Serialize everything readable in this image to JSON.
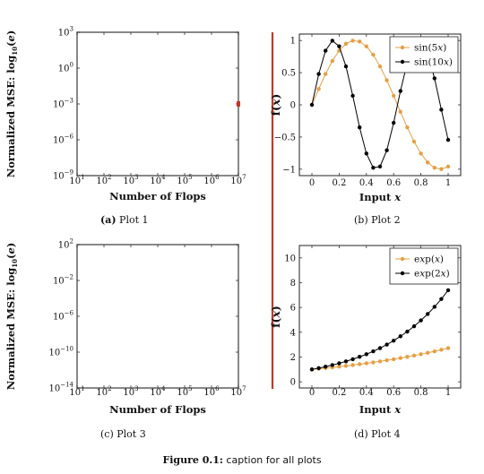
{
  "figure_caption": {
    "label": "Figure 0.1:",
    "text": "caption for all plots"
  },
  "subcaptions": [
    {
      "label": "(a)",
      "text": "Plot 1"
    },
    {
      "label": "(b)",
      "text": "Plot 2"
    },
    {
      "label": "(c)",
      "text": "Plot 3"
    },
    {
      "label": "(d)",
      "text": "Plot 4"
    }
  ],
  "chart_data": [
    {
      "type": "line",
      "scale": "log-log",
      "xlabel": "Number of Flops",
      "ylabel": "Normalized MSE: log10(e)",
      "x_ticks": [
        "10^1",
        "10^2",
        "10^3",
        "10^4",
        "10^5",
        "10^6",
        "10^7"
      ],
      "y_ticks": [
        "10^-9",
        "10^-6",
        "10^-3",
        "10^0",
        "10^3"
      ],
      "xlim": [
        10,
        10000000
      ],
      "ylim": [
        1e-09,
        1000
      ],
      "grid": false,
      "series": []
    },
    {
      "type": "line",
      "xlabel": "Input x",
      "ylabel": "f(x)",
      "x_ticks": [
        "0",
        "0.2",
        "0.4",
        "0.6",
        "0.8",
        "1"
      ],
      "y_ticks": [
        "−1",
        "−0.5",
        "0",
        "0.5",
        "1"
      ],
      "xlim": [
        0,
        1
      ],
      "ylim": [
        -1.1,
        1.1
      ],
      "legend_position": "top-right",
      "series": [
        {
          "name": "sin(5x)",
          "color": "#e3a046",
          "expr": "sin(5x)",
          "x": [
            0,
            0.05,
            0.1,
            0.15,
            0.2,
            0.25,
            0.3,
            0.35,
            0.4,
            0.45,
            0.5,
            0.55,
            0.6,
            0.65,
            0.7,
            0.75,
            0.8,
            0.85,
            0.9,
            0.95,
            1
          ],
          "y": [
            0,
            0.247,
            0.479,
            0.682,
            0.841,
            0.949,
            0.997,
            0.984,
            0.909,
            0.778,
            0.598,
            0.381,
            0.141,
            -0.108,
            -0.351,
            -0.571,
            -0.757,
            -0.895,
            -0.978,
            -0.999,
            -0.959
          ]
        },
        {
          "name": "sin(10x)",
          "color": "#000000",
          "expr": "sin(10x)",
          "x": [
            0,
            0.05,
            0.1,
            0.15,
            0.2,
            0.25,
            0.3,
            0.35,
            0.4,
            0.45,
            0.5,
            0.55,
            0.6,
            0.65,
            0.7,
            0.75,
            0.8,
            0.85,
            0.9,
            0.95,
            1
          ],
          "y": [
            0,
            0.479,
            0.841,
            0.997,
            0.909,
            0.598,
            0.141,
            -0.351,
            -0.757,
            -0.978,
            -0.959,
            -0.706,
            -0.279,
            0.215,
            0.657,
            0.938,
            0.989,
            0.798,
            0.412,
            -0.075,
            -0.544
          ]
        }
      ]
    },
    {
      "type": "line",
      "scale": "log-log",
      "xlabel": "Number of Flops",
      "ylabel": "Normalized MSE: log10(e)",
      "x_ticks": [
        "10^1",
        "10^2",
        "10^3",
        "10^4",
        "10^5",
        "10^6",
        "10^7"
      ],
      "y_ticks": [
        "10^-14",
        "10^-10",
        "10^-6",
        "10^-2",
        "10^2"
      ],
      "xlim": [
        10,
        10000000
      ],
      "ylim": [
        1e-14,
        100
      ],
      "grid": false,
      "series": []
    },
    {
      "type": "line",
      "xlabel": "Input x",
      "ylabel": "f(x)",
      "x_ticks": [
        "0",
        "0.2",
        "0.4",
        "0.6",
        "0.8",
        "1"
      ],
      "y_ticks": [
        "0",
        "2",
        "4",
        "6",
        "8",
        "10"
      ],
      "xlim": [
        0,
        1
      ],
      "ylim": [
        -0.5,
        11
      ],
      "legend_position": "top-right",
      "series": [
        {
          "name": "exp(x)",
          "color": "#e3a046",
          "expr": "exp(x)",
          "x": [
            0,
            0.05,
            0.1,
            0.15,
            0.2,
            0.25,
            0.3,
            0.35,
            0.4,
            0.45,
            0.5,
            0.55,
            0.6,
            0.65,
            0.7,
            0.75,
            0.8,
            0.85,
            0.9,
            0.95,
            1
          ],
          "y": [
            1,
            1.051,
            1.105,
            1.162,
            1.221,
            1.284,
            1.35,
            1.419,
            1.492,
            1.568,
            1.649,
            1.733,
            1.822,
            1.916,
            2.014,
            2.117,
            2.226,
            2.34,
            2.46,
            2.586,
            2.718
          ]
        },
        {
          "name": "exp(2x)",
          "color": "#000000",
          "expr": "exp(2x)",
          "x": [
            0,
            0.05,
            0.1,
            0.15,
            0.2,
            0.25,
            0.3,
            0.35,
            0.4,
            0.45,
            0.5,
            0.55,
            0.6,
            0.65,
            0.7,
            0.75,
            0.8,
            0.85,
            0.9,
            0.95,
            1
          ],
          "y": [
            1,
            1.105,
            1.221,
            1.35,
            1.492,
            1.649,
            1.822,
            2.014,
            2.226,
            2.46,
            2.718,
            3.004,
            3.32,
            3.669,
            4.055,
            4.482,
            4.953,
            5.474,
            6.05,
            6.686,
            7.389
          ]
        }
      ]
    }
  ]
}
